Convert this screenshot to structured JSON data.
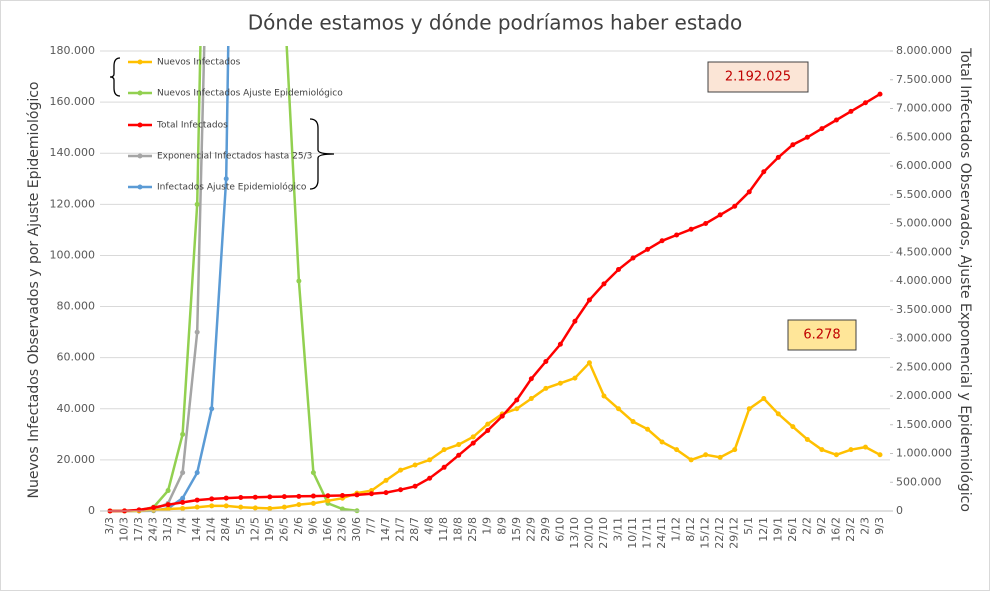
{
  "chart_data": {
    "type": "line",
    "title": "Dónde estamos y dónde podríamos haber estado",
    "ylabel": "Nuevos Infectados Observados y por Ajuste Epidemiológico",
    "y2label": "Total Infectados Observados, Ajuste Exponencial y Epidemiológico",
    "categories": [
      "3/3",
      "10/3",
      "17/3",
      "24/3",
      "31/3",
      "7/4",
      "14/4",
      "21/4",
      "28/4",
      "5/5",
      "12/5",
      "19/5",
      "26/5",
      "2/6",
      "9/6",
      "16/6",
      "23/6",
      "30/6",
      "7/7",
      "14/7",
      "21/7",
      "28/7",
      "4/8",
      "11/8",
      "18/8",
      "25/8",
      "1/9",
      "8/9",
      "15/9",
      "22/9",
      "29/9",
      "6/10",
      "13/10",
      "20/10",
      "27/10",
      "3/11",
      "10/11",
      "17/11",
      "24/11",
      "1/12",
      "8/12",
      "15/12",
      "22/12",
      "29/12",
      "5/1",
      "12/1",
      "19/1",
      "26/1",
      "2/2",
      "9/2",
      "16/2",
      "23/2",
      "2/3",
      "9/3"
    ],
    "ylim": [
      0,
      180000
    ],
    "yticks": [
      0,
      {
        "value": 20000,
        "label": "20.000"
      },
      {
        "value": 40000,
        "label": "40.000"
      },
      {
        "value": 60000,
        "label": "60.000"
      },
      {
        "value": 80000,
        "label": "80.000"
      },
      {
        "value": 100000,
        "label": "100.000"
      },
      {
        "value": 120000,
        "label": "120.000"
      },
      {
        "value": 140000,
        "label": "140.000"
      },
      {
        "value": 160000,
        "label": "160.000"
      },
      {
        "value": 180000,
        "label": "180.000"
      }
    ],
    "y2lim": [
      0,
      8000000
    ],
    "y2ticks": [
      0,
      {
        "value": 500000,
        "label": "500.000"
      },
      {
        "value": 1000000,
        "label": "1.000.000"
      },
      {
        "value": 1500000,
        "label": "1.500.000"
      },
      {
        "value": 2000000,
        "label": "2.000.000"
      },
      {
        "value": 2500000,
        "label": "2.500.000"
      },
      {
        "value": 3000000,
        "label": "3.000.000"
      },
      {
        "value": 3500000,
        "label": "3.500.000"
      },
      {
        "value": 4000000,
        "label": "4.000.000"
      },
      {
        "value": 4500000,
        "label": "4.500.000"
      },
      {
        "value": 5000000,
        "label": "5.000.000"
      },
      {
        "value": 5500000,
        "label": "5.500.000"
      },
      {
        "value": 6000000,
        "label": "6.000.000"
      },
      {
        "value": 6500000,
        "label": "6.500.000"
      },
      {
        "value": 7000000,
        "label": "7.000.000"
      },
      {
        "value": 7500000,
        "label": "7.500.000"
      },
      {
        "value": 8000000,
        "label": "8.000.000"
      }
    ],
    "grid": true,
    "series": [
      {
        "name": "Nuevos Infectados",
        "color": "#ffc000",
        "values": [
          0,
          0,
          50,
          300,
          800,
          1000,
          1500,
          2000,
          2000,
          1500,
          1200,
          1000,
          1500,
          2500,
          3000,
          4000,
          5000,
          7000,
          8000,
          12000,
          16000,
          18000,
          20000,
          24000,
          26000,
          29000,
          34000,
          38000,
          40000,
          44000,
          48000,
          50000,
          52000,
          58000,
          45000,
          40000,
          35000,
          32000,
          27000,
          24000,
          20000,
          22000,
          21000,
          24000,
          40000,
          44000,
          38000,
          33000,
          28000,
          24000,
          22000,
          24000,
          25000,
          22000
        ]
      },
      {
        "name": "Nuevos Infectados Ajuste Epidemiológico",
        "color": "#92d050",
        "values": [
          0,
          50,
          300,
          1500,
          8000,
          30000,
          120000,
          400000,
          400000,
          400000,
          400000,
          400000,
          200000,
          90000,
          15000,
          3000,
          800,
          100,
          null,
          null,
          null,
          null,
          null,
          null,
          null,
          null,
          null,
          null,
          null,
          null,
          null,
          null,
          null,
          null,
          null,
          null,
          null,
          null,
          null,
          null,
          null,
          null,
          null,
          null,
          null,
          null,
          null,
          null,
          null,
          null,
          null,
          null,
          null,
          null
        ]
      },
      {
        "name": "Total Infectados",
        "color": "#ff0000",
        "axis": "y2",
        "values": [
          0,
          2000,
          20000,
          60000,
          110000,
          150000,
          190000,
          210000,
          225000,
          235000,
          240000,
          245000,
          250000,
          255000,
          260000,
          265000,
          270000,
          280000,
          300000,
          320000,
          370000,
          430000,
          570000,
          760000,
          970000,
          1180000,
          1400000,
          1650000,
          1930000,
          2300000,
          2600000,
          2900000,
          3300000,
          3670000,
          3950000,
          4200000,
          4400000,
          4550000,
          4700000,
          4800000,
          4900000,
          5000000,
          5150000,
          5300000,
          5550000,
          5900000,
          6150000,
          6370000,
          6500000,
          6650000,
          6800000,
          6950000,
          7100000,
          7250000
        ]
      },
      {
        "name": "Exponencial Infectados hasta 25/3",
        "color": "#a5a5a5",
        "values": [
          0,
          0,
          100,
          600,
          3000,
          15000,
          70000,
          300000,
          null,
          null,
          null,
          null,
          null,
          null,
          null,
          null,
          null,
          null,
          null,
          null,
          null,
          null,
          null,
          null,
          null,
          null,
          null,
          null,
          null,
          null,
          null,
          null,
          null,
          null,
          null,
          null,
          null,
          null,
          null,
          null,
          null,
          null,
          null,
          null,
          null,
          null,
          null,
          null,
          null,
          null,
          null,
          null,
          null,
          null
        ]
      },
      {
        "name": "Infectados Ajuste Epidemiológico",
        "color": "#5b9bd5",
        "values": [
          0,
          0,
          0,
          100,
          1000,
          5000,
          15000,
          40000,
          130000,
          500000,
          null,
          null,
          null,
          null,
          null,
          null,
          null,
          null,
          null,
          null,
          null,
          null,
          null,
          null,
          null,
          null,
          null,
          null,
          null,
          null,
          null,
          null,
          null,
          null,
          null,
          null,
          null,
          null,
          null,
          null,
          null,
          null,
          null,
          null,
          null,
          null,
          null,
          null,
          null,
          null,
          null,
          null,
          null,
          null
        ]
      }
    ],
    "annotations": [
      {
        "text": "2.192.025"
      },
      {
        "text": "6.278"
      }
    ]
  }
}
